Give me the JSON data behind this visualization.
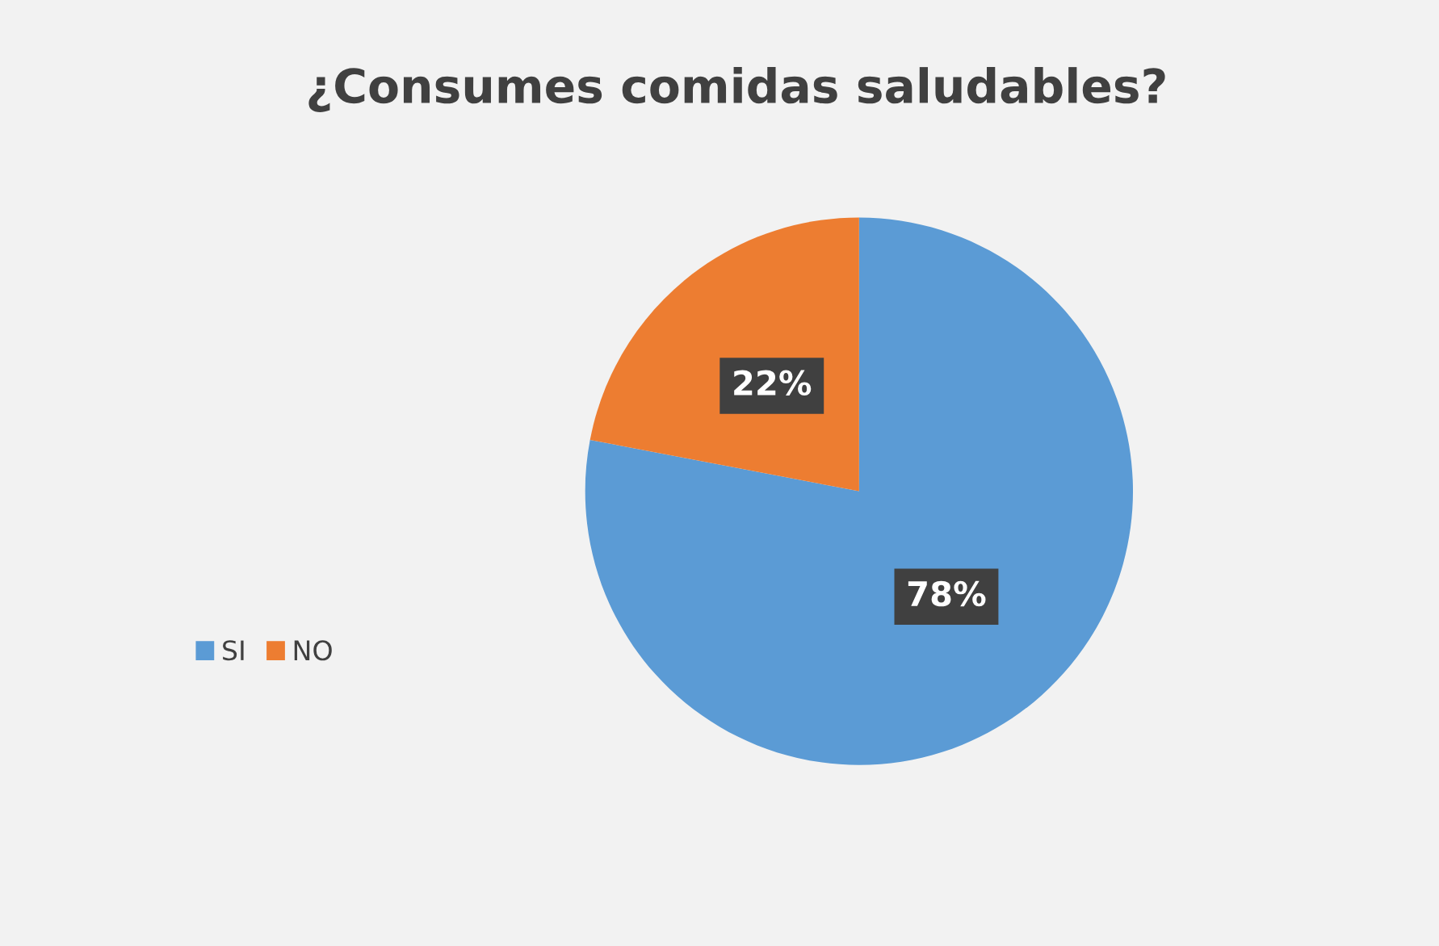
{
  "chart_data": {
    "type": "pie",
    "title": "¿Consumes comidas saludables?",
    "categories": [
      "SI",
      "NO"
    ],
    "values": [
      78,
      22
    ],
    "colors": [
      "#5b9bd5",
      "#ed7d31"
    ],
    "value_labels": [
      "78%",
      "22%"
    ],
    "legend": "left"
  }
}
